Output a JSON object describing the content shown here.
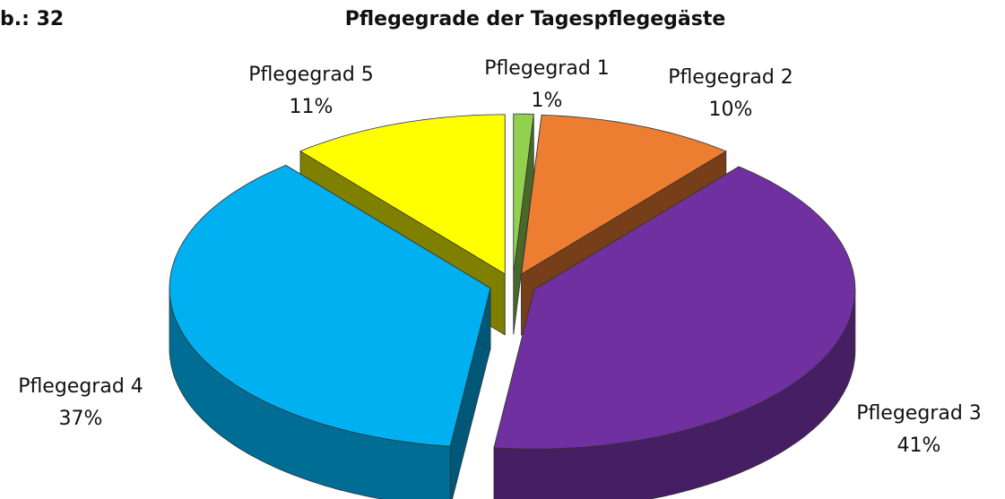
{
  "chart_data": {
    "type": "pie",
    "figure_label": "b.: 32",
    "title": "Pflegegrade der Tagespflegegäste",
    "categories": [
      "Pflegegrad 1",
      "Pflegegrad 2",
      "Pflegegrad 3",
      "Pflegegrad 4",
      "Pflegegrad 5"
    ],
    "values": [
      1,
      10,
      41,
      37,
      11
    ],
    "value_labels": [
      "1%",
      "10%",
      "41%",
      "37%",
      "11%"
    ],
    "colors": [
      "#92d050",
      "#ed7d31",
      "#7030a0",
      "#00b0f0",
      "#ffff00"
    ]
  }
}
